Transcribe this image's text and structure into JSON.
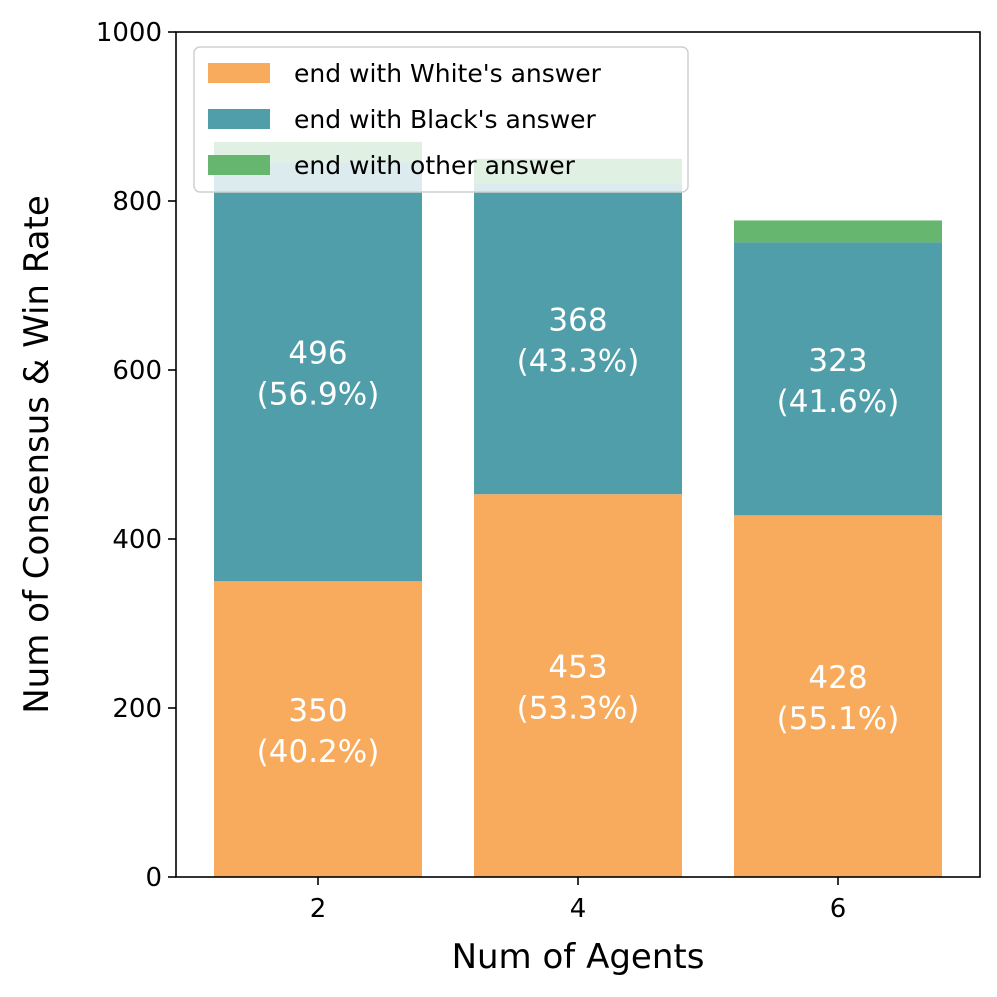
{
  "chart_data": {
    "type": "bar",
    "stacked": true,
    "title": "",
    "xlabel": "Num of Agents",
    "ylabel": "Num of Consensus & Win Rate",
    "categories": [
      "2",
      "4",
      "6"
    ],
    "ylim": [
      0,
      1000
    ],
    "yticks": [
      0,
      200,
      400,
      600,
      800,
      1000
    ],
    "grid": false,
    "legend_position": "top-left",
    "series": [
      {
        "name": "end with White's answer",
        "color": "#f8ab5d",
        "values": [
          350,
          453,
          428
        ],
        "labels": [
          [
            "350",
            "(40.2%)"
          ],
          [
            "453",
            "(53.3%)"
          ],
          [
            "428",
            "(55.1%)"
          ]
        ]
      },
      {
        "name": "end with Black's answer",
        "color": "#509ea9",
        "values": [
          496,
          368,
          323
        ],
        "labels": [
          [
            "496",
            "(56.9%)"
          ],
          [
            "368",
            "(43.3%)"
          ],
          [
            "323",
            "(41.6%)"
          ]
        ]
      },
      {
        "name": "end with other answer",
        "color": "#67b670",
        "values": [
          24,
          29,
          26
        ],
        "labels": [
          null,
          null,
          null
        ]
      }
    ]
  }
}
